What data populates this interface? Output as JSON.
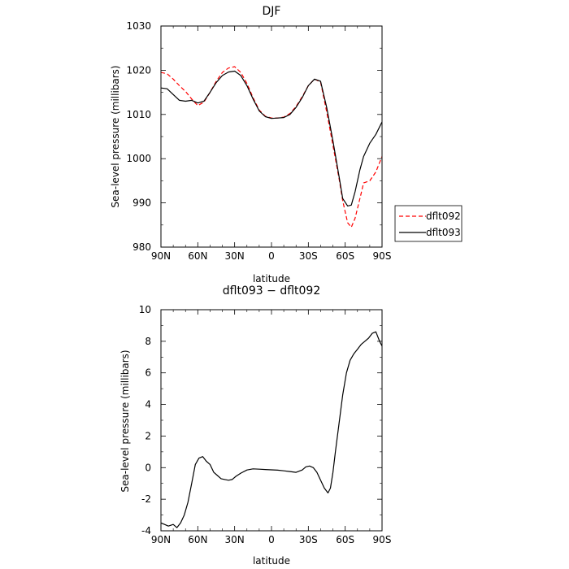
{
  "chart_data": [
    {
      "type": "line",
      "title": "DJF",
      "xlabel": "latitude",
      "ylabel": "Sea-level pressure (millibars)",
      "ylim": [
        980,
        1030
      ],
      "xlim": [
        90,
        -90
      ],
      "x_ticks": [
        90,
        60,
        30,
        0,
        -30,
        -60,
        -90
      ],
      "x_tick_labels": [
        "90N",
        "60N",
        "30N",
        "0",
        "30S",
        "60S",
        "90S"
      ],
      "y_ticks": [
        980,
        990,
        1000,
        1010,
        1020,
        1030
      ],
      "grid": false,
      "legend": "right, outside",
      "series": [
        {
          "name": "dflt092",
          "color": "#ff0000",
          "dash": "dashed",
          "x": [
            90,
            85,
            80,
            75,
            70,
            65,
            60,
            55,
            50,
            45,
            40,
            35,
            30,
            25,
            20,
            15,
            10,
            5,
            0,
            -5,
            -10,
            -15,
            -20,
            -25,
            -30,
            -35,
            -40,
            -45,
            -50,
            -55,
            -58,
            -62,
            -65,
            -68,
            -72,
            -75,
            -80,
            -85,
            -90
          ],
          "values": [
            1019.5,
            1019.2,
            1018.0,
            1016.5,
            1015.2,
            1013.5,
            1012.0,
            1012.8,
            1015.0,
            1017.5,
            1019.5,
            1020.5,
            1020.8,
            1019.5,
            1017.0,
            1013.8,
            1011.0,
            1009.6,
            1009.2,
            1009.2,
            1009.4,
            1010.2,
            1011.8,
            1014.0,
            1016.5,
            1018.0,
            1017.3,
            1010.5,
            1003.0,
            995.5,
            990.5,
            985.5,
            984.5,
            986.5,
            991.0,
            994.5,
            995.0,
            997.0,
            1000.5
          ]
        },
        {
          "name": "dflt093",
          "color": "#000000",
          "dash": "solid",
          "x": [
            90,
            85,
            80,
            75,
            70,
            65,
            60,
            55,
            50,
            45,
            40,
            35,
            30,
            25,
            20,
            15,
            10,
            5,
            0,
            -5,
            -10,
            -15,
            -20,
            -25,
            -30,
            -35,
            -40,
            -45,
            -50,
            -55,
            -58,
            -62,
            -65,
            -68,
            -72,
            -75,
            -80,
            -85,
            -90
          ],
          "values": [
            1016.0,
            1015.8,
            1014.5,
            1013.2,
            1013.0,
            1013.2,
            1012.6,
            1013.0,
            1015.0,
            1017.2,
            1018.8,
            1019.6,
            1019.8,
            1018.8,
            1016.5,
            1013.5,
            1010.8,
            1009.5,
            1009.1,
            1009.2,
            1009.3,
            1010.0,
            1011.6,
            1013.8,
            1016.5,
            1018.0,
            1017.5,
            1011.5,
            1004.0,
            996.0,
            991.0,
            989.3,
            989.5,
            992.5,
            997.5,
            1000.5,
            1003.5,
            1005.5,
            1008.3
          ]
        }
      ]
    },
    {
      "type": "line",
      "title": "dflt093 − dflt092",
      "xlabel": "latitude",
      "ylabel": "Sea-level pressure (millibars)",
      "ylim": [
        -4,
        10
      ],
      "xlim": [
        90,
        -90
      ],
      "x_ticks": [
        90,
        60,
        30,
        0,
        -30,
        -60,
        -90
      ],
      "x_tick_labels": [
        "90N",
        "60N",
        "30N",
        "0",
        "30S",
        "60S",
        "90S"
      ],
      "y_ticks": [
        -4,
        -2,
        0,
        2,
        4,
        6,
        8,
        10
      ],
      "grid": false,
      "series": [
        {
          "color": "#000000",
          "dash": "solid",
          "x": [
            90,
            87,
            84,
            80,
            77,
            74,
            71,
            68,
            65,
            62,
            59,
            56,
            53,
            50,
            47,
            44,
            41,
            38,
            35,
            32,
            29,
            25,
            20,
            15,
            10,
            5,
            0,
            -5,
            -10,
            -15,
            -20,
            -25,
            -28,
            -31,
            -34,
            -37,
            -40,
            -43,
            -46,
            -48,
            -50,
            -52,
            -55,
            -58,
            -61,
            -64,
            -67,
            -70,
            -73,
            -76,
            -79,
            -82,
            -85,
            -88,
            -90
          ],
          "values": [
            -3.5,
            -3.6,
            -3.7,
            -3.6,
            -3.8,
            -3.5,
            -3.0,
            -2.2,
            -1.0,
            0.2,
            0.6,
            0.7,
            0.4,
            0.2,
            -0.3,
            -0.5,
            -0.7,
            -0.75,
            -0.8,
            -0.75,
            -0.55,
            -0.35,
            -0.15,
            -0.08,
            -0.1,
            -0.12,
            -0.14,
            -0.16,
            -0.2,
            -0.25,
            -0.3,
            -0.15,
            0.05,
            0.1,
            0.0,
            -0.3,
            -0.8,
            -1.3,
            -1.6,
            -1.3,
            -0.3,
            1.0,
            2.8,
            4.6,
            6.0,
            6.8,
            7.2,
            7.5,
            7.8,
            8.0,
            8.2,
            8.5,
            8.6,
            8.0,
            7.7
          ]
        }
      ]
    }
  ]
}
